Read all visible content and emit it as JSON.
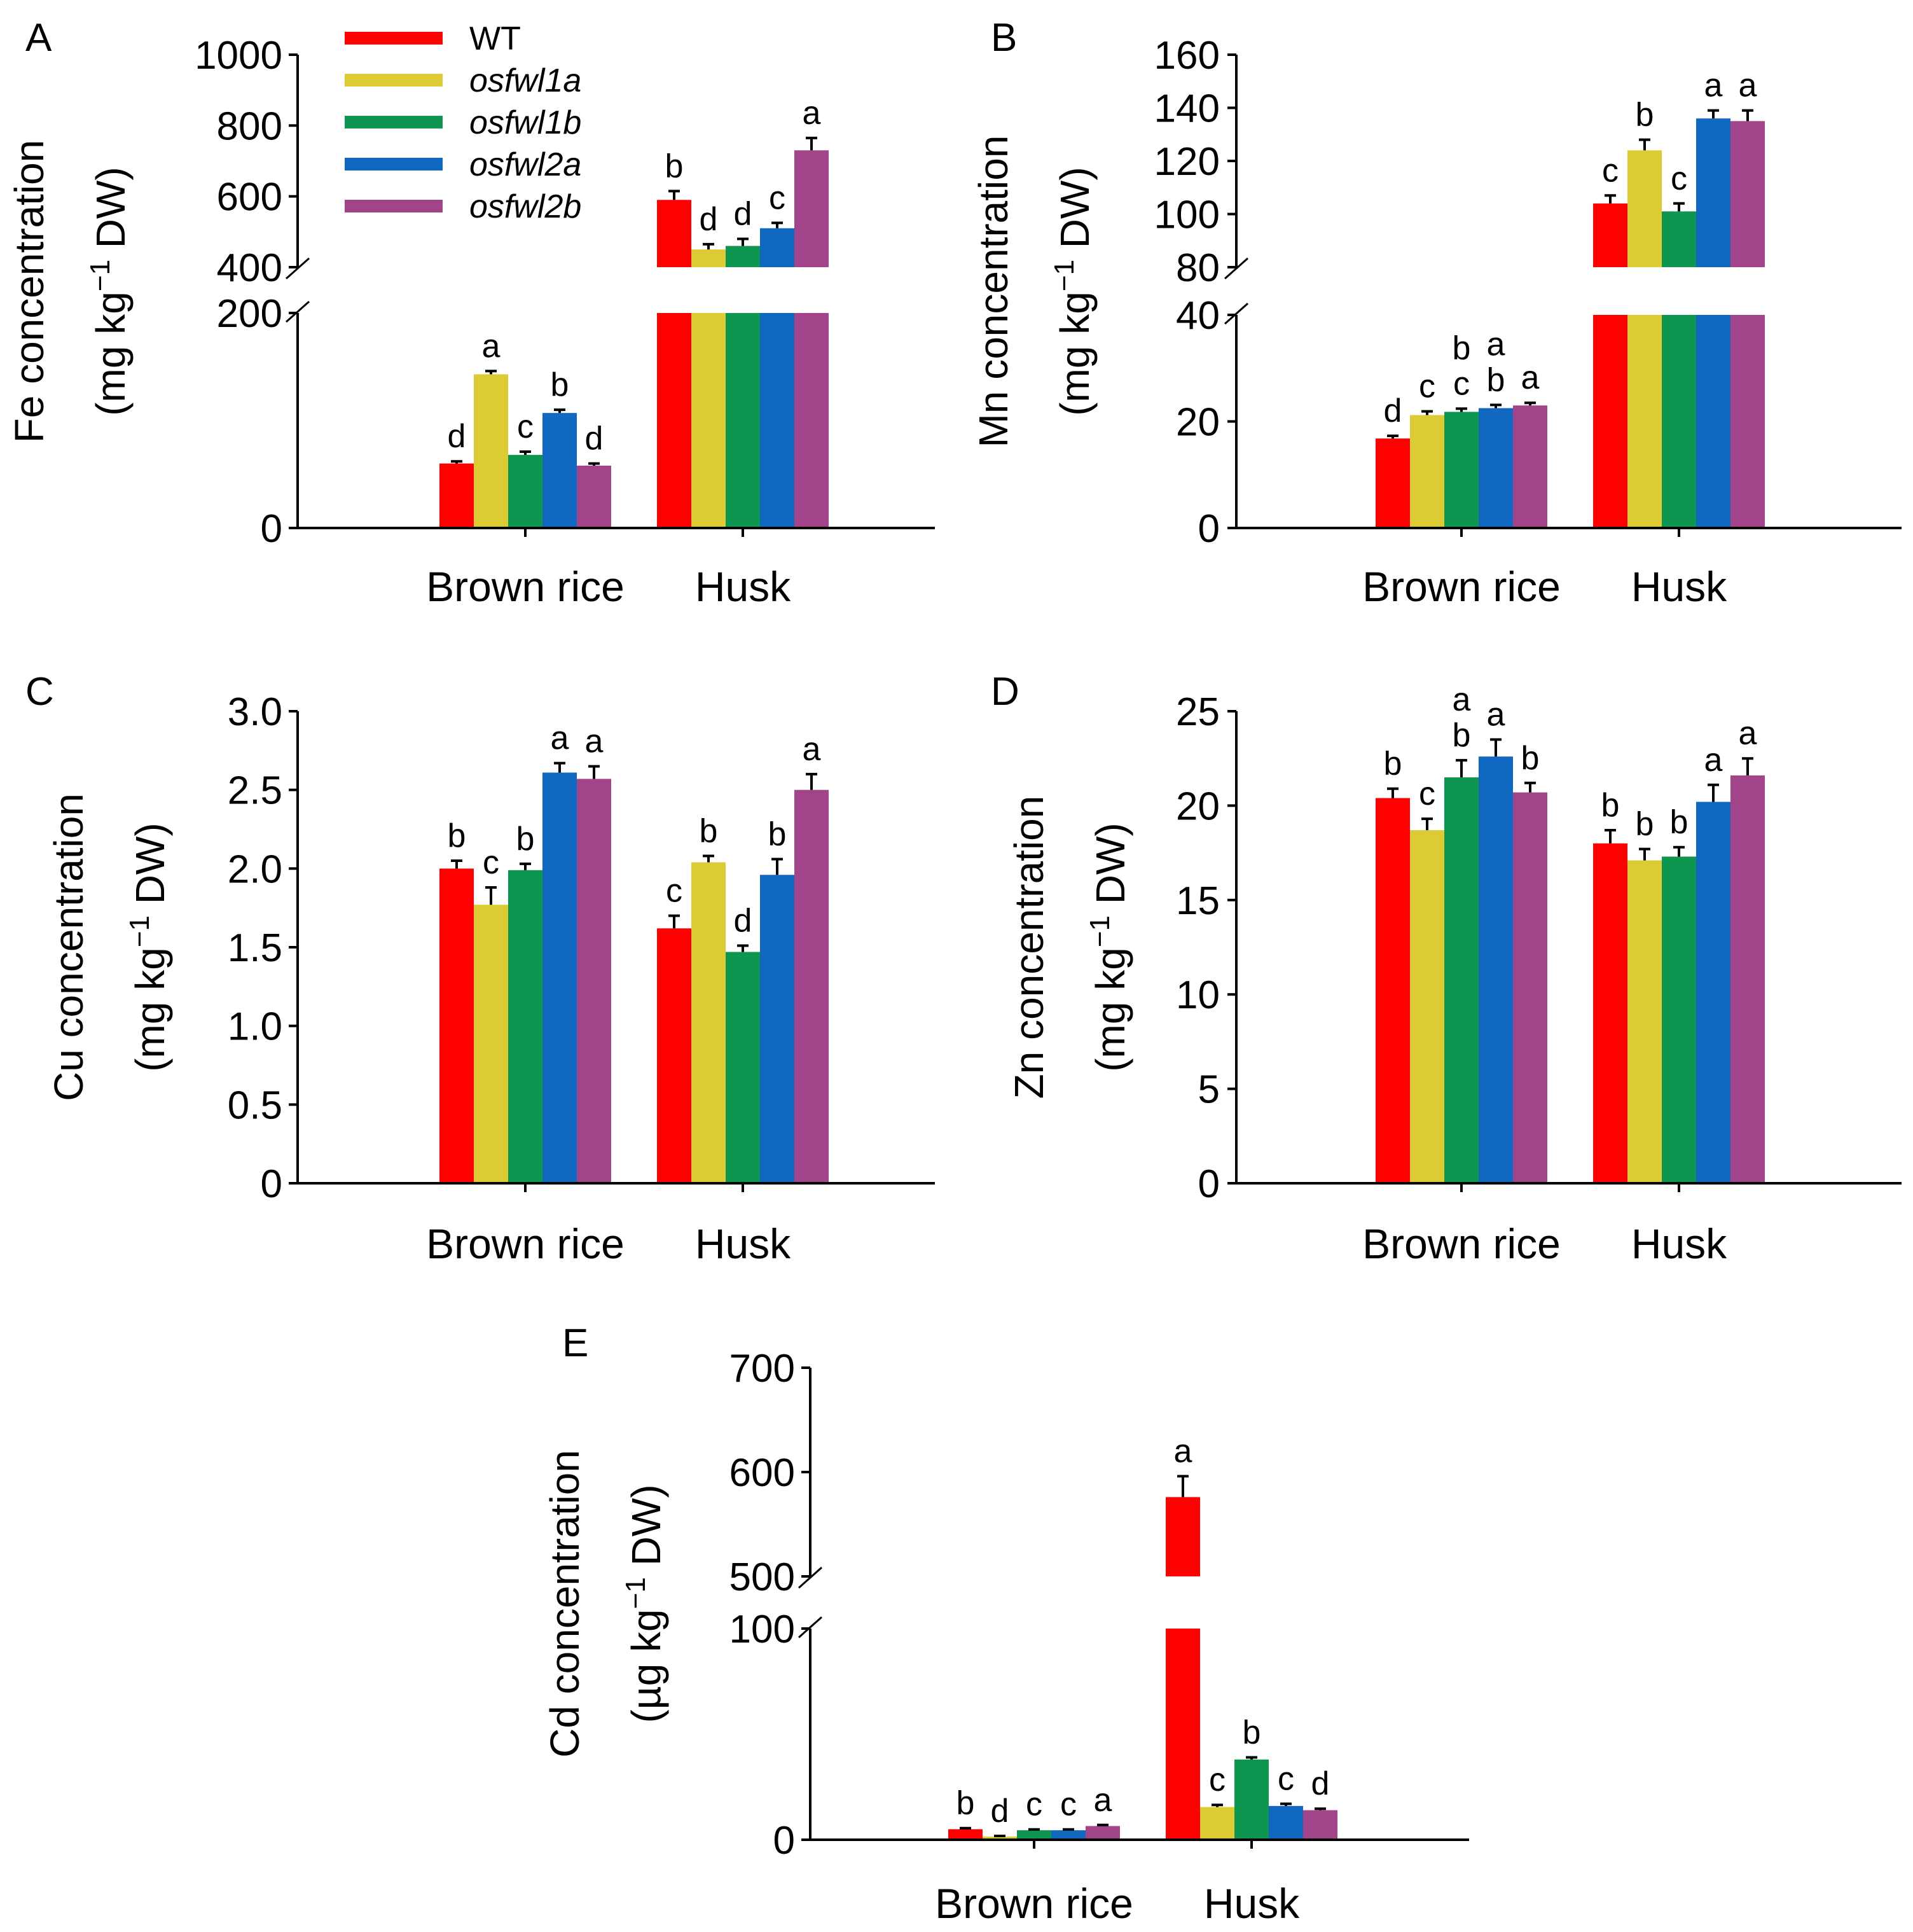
{
  "legend": [
    {
      "name": "WT",
      "italic": false,
      "color": "#ff0000"
    },
    {
      "name": "osfwl1a",
      "italic": true,
      "color": "#dccb35"
    },
    {
      "name": "osfwl1b",
      "italic": true,
      "color": "#0e9650"
    },
    {
      "name": "osfwl2a",
      "italic": true,
      "color": "#1068c0"
    },
    {
      "name": "osfwl2b",
      "italic": true,
      "color": "#a14489"
    }
  ],
  "chart_data": [
    {
      "panel": "A",
      "type": "bar",
      "ylabel_line1": "Fe concentration",
      "ylabel_line2_pre": "(mg kg",
      "ylabel_sup": "−1",
      "ylabel_line2_post": " DW)",
      "categories": [
        "Brown rice",
        "Husk"
      ],
      "broken_axis": {
        "lower": [
          0,
          200
        ],
        "upper": [
          400,
          1000
        ]
      },
      "tick_labels": [
        "0",
        "200",
        "400",
        "600",
        "800",
        "1000"
      ],
      "series": [
        {
          "name": "WT",
          "values": [
            60,
            590
          ],
          "errors": [
            2,
            25
          ],
          "letters": [
            "d",
            "b"
          ]
        },
        {
          "name": "osfwl1a",
          "values": [
            143,
            450
          ],
          "errors": [
            3,
            15
          ],
          "letters": [
            "a",
            "d"
          ]
        },
        {
          "name": "osfwl1b",
          "values": [
            68,
            460
          ],
          "errors": [
            3,
            20
          ],
          "letters": [
            "c",
            "d"
          ]
        },
        {
          "name": "osfwl2a",
          "values": [
            107,
            510
          ],
          "errors": [
            3,
            15
          ],
          "letters": [
            "b",
            "c"
          ]
        },
        {
          "name": "osfwl2b",
          "values": [
            58,
            730
          ],
          "errors": [
            2,
            35
          ],
          "letters": [
            "d",
            "a"
          ]
        }
      ]
    },
    {
      "panel": "B",
      "type": "bar",
      "ylabel_line1": "Mn concentration",
      "ylabel_line2_pre": "(mg kg",
      "ylabel_sup": "−1",
      "ylabel_line2_post": " DW)",
      "categories": [
        "Brown rice",
        "Husk"
      ],
      "broken_axis": {
        "lower": [
          0,
          40
        ],
        "upper": [
          80,
          160
        ]
      },
      "tick_labels": [
        "0",
        "20",
        "40",
        "80",
        "100",
        "120",
        "140",
        "160"
      ],
      "series": [
        {
          "name": "WT",
          "values": [
            16.8,
            104
          ],
          "errors": [
            0.5,
            3
          ],
          "letters": [
            "d",
            "c"
          ]
        },
        {
          "name": "osfwl1a",
          "values": [
            21.2,
            124
          ],
          "errors": [
            0.7,
            4
          ],
          "letters": [
            "c",
            "b"
          ]
        },
        {
          "name": "osfwl1b",
          "values": [
            21.8,
            101
          ],
          "errors": [
            0.6,
            3
          ],
          "letters": [
            "bc",
            "c"
          ]
        },
        {
          "name": "osfwl2a",
          "values": [
            22.5,
            136
          ],
          "errors": [
            0.6,
            3
          ],
          "letters": [
            "ab",
            "a"
          ]
        },
        {
          "name": "osfwl2b",
          "values": [
            23.0,
            135
          ],
          "errors": [
            0.5,
            4
          ],
          "letters": [
            "a",
            "a"
          ]
        }
      ]
    },
    {
      "panel": "C",
      "type": "bar",
      "ylabel_line1": "Cu concentration",
      "ylabel_line2_pre": "(mg kg",
      "ylabel_sup": "−1",
      "ylabel_line2_post": " DW)",
      "categories": [
        "Brown rice",
        "Husk"
      ],
      "ylim": [
        0,
        3.0
      ],
      "tick_labels": [
        "0",
        "0.5",
        "1.0",
        "1.5",
        "2.0",
        "2.5",
        "3.0"
      ],
      "series": [
        {
          "name": "WT",
          "values": [
            2.0,
            1.62
          ],
          "errors": [
            0.05,
            0.08
          ],
          "letters": [
            "b",
            "c"
          ]
        },
        {
          "name": "osfwl1a",
          "values": [
            1.77,
            2.04
          ],
          "errors": [
            0.11,
            0.04
          ],
          "letters": [
            "c",
            "b"
          ]
        },
        {
          "name": "osfwl1b",
          "values": [
            1.99,
            1.47
          ],
          "errors": [
            0.04,
            0.04
          ],
          "letters": [
            "b",
            "d"
          ]
        },
        {
          "name": "osfwl2a",
          "values": [
            2.61,
            1.96
          ],
          "errors": [
            0.06,
            0.1
          ],
          "letters": [
            "a",
            "b"
          ]
        },
        {
          "name": "osfwl2b",
          "values": [
            2.57,
            2.5
          ],
          "errors": [
            0.08,
            0.1
          ],
          "letters": [
            "a",
            "a"
          ]
        }
      ]
    },
    {
      "panel": "D",
      "type": "bar",
      "ylabel_line1": "Zn concentration",
      "ylabel_line2_pre": "(mg kg",
      "ylabel_sup": "−1",
      "ylabel_line2_post": " DW)",
      "categories": [
        "Brown rice",
        "Husk"
      ],
      "ylim": [
        0,
        25
      ],
      "tick_labels": [
        "0",
        "5",
        "10",
        "15",
        "20",
        "25"
      ],
      "series": [
        {
          "name": "WT",
          "values": [
            20.4,
            18.0
          ],
          "errors": [
            0.5,
            0.7
          ],
          "letters": [
            "b",
            "b"
          ]
        },
        {
          "name": "osfwl1a",
          "values": [
            18.7,
            17.1
          ],
          "errors": [
            0.6,
            0.6
          ],
          "letters": [
            "c",
            "b"
          ]
        },
        {
          "name": "osfwl1b",
          "values": [
            21.5,
            17.3
          ],
          "errors": [
            0.9,
            0.5
          ],
          "letters": [
            "ab",
            "b"
          ]
        },
        {
          "name": "osfwl2a",
          "values": [
            22.6,
            20.2
          ],
          "errors": [
            0.9,
            0.9
          ],
          "letters": [
            "a",
            "a"
          ]
        },
        {
          "name": "osfwl2b",
          "values": [
            20.7,
            21.6
          ],
          "errors": [
            0.5,
            0.9
          ],
          "letters": [
            "b",
            "a"
          ]
        }
      ]
    },
    {
      "panel": "E",
      "type": "bar",
      "ylabel_line1": "Cd concentration",
      "ylabel_line2_pre": "(µg kg",
      "ylabel_sup": "−1",
      "ylabel_line2_post": " DW)",
      "categories": [
        "Brown rice",
        "Husk"
      ],
      "broken_axis": {
        "lower": [
          0,
          100
        ],
        "upper": [
          500,
          700
        ]
      },
      "tick_labels": [
        "0",
        "100",
        "500",
        "600",
        "700"
      ],
      "series": [
        {
          "name": "WT",
          "values": [
            5.0,
            576
          ],
          "errors": [
            0.5,
            20
          ],
          "letters": [
            "b",
            "a"
          ]
        },
        {
          "name": "osfwl1a",
          "values": [
            1.5,
            15.5
          ],
          "errors": [
            0.3,
            1.0
          ],
          "letters": [
            "d",
            "c"
          ]
        },
        {
          "name": "osfwl1b",
          "values": [
            4.5,
            38.0
          ],
          "errors": [
            0.4,
            1.0
          ],
          "letters": [
            "c",
            "b"
          ]
        },
        {
          "name": "osfwl2a",
          "values": [
            4.5,
            16.0
          ],
          "errors": [
            0.4,
            1.0
          ],
          "letters": [
            "c",
            "c"
          ]
        },
        {
          "name": "osfwl2b",
          "values": [
            6.5,
            14.0
          ],
          "errors": [
            0.5,
            0.7
          ],
          "letters": [
            "a",
            "d"
          ]
        }
      ]
    }
  ]
}
